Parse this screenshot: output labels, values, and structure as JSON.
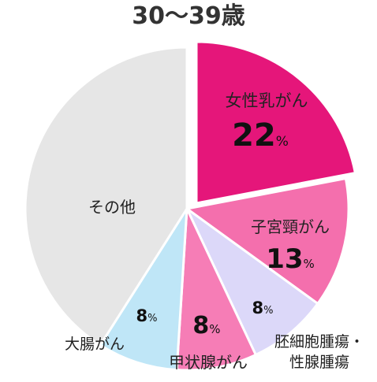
{
  "chart_data": {
    "type": "pie",
    "title": "30～39歳",
    "unit": "%",
    "slices": [
      {
        "name": "女性乳がん",
        "value": 22,
        "value_text": "22",
        "color": "#e5167a"
      },
      {
        "name": "子宮頸がん",
        "value": 13,
        "value_text": "13",
        "color": "#f46fad"
      },
      {
        "name": "胚細胞腫瘍・性腺腫瘍",
        "name_lines": [
          "胚細胞腫瘍・",
          "性腺腫瘍"
        ],
        "value": 8,
        "value_text": "8",
        "color": "#dcd8f9"
      },
      {
        "name": "甲状腺がん",
        "value": 8,
        "value_text": "8",
        "color": "#f67db6"
      },
      {
        "name": "大腸がん",
        "value": 8,
        "value_text": "8",
        "color": "#bfe6f7"
      },
      {
        "name": "その他",
        "value": 41,
        "value_text": "",
        "color": "#e6e6e6"
      }
    ]
  }
}
